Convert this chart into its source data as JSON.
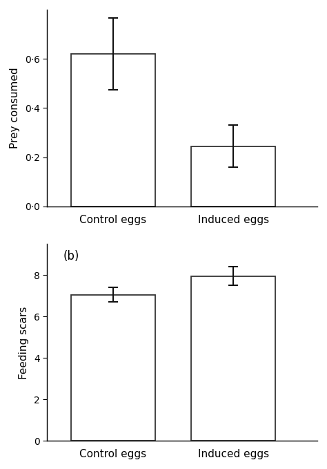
{
  "top": {
    "categories": [
      "Control eggs",
      "Induced eggs"
    ],
    "values": [
      0.62,
      0.245
    ],
    "errors_upper": [
      0.145,
      0.085
    ],
    "errors_lower": [
      0.145,
      0.085
    ],
    "ylabel": "Prey consumed",
    "ylim": [
      0,
      0.8
    ],
    "yticks": [
      0.0,
      0.2,
      0.4,
      0.6
    ],
    "ytick_labels": [
      "0·0",
      "0·2",
      "0·4",
      "0·6"
    ]
  },
  "bottom": {
    "categories": [
      "Control eggs",
      "Induced eggs"
    ],
    "values": [
      7.05,
      7.95
    ],
    "errors_upper": [
      0.35,
      0.45
    ],
    "errors_lower": [
      0.35,
      0.45
    ],
    "ylabel": "Feeding scars",
    "panel_label": "(b)",
    "ylim": [
      0,
      9.5
    ],
    "yticks": [
      0,
      2,
      4,
      6,
      8
    ],
    "ytick_labels": [
      "0",
      "2",
      "4",
      "6",
      "8"
    ]
  },
  "bar_color": "white",
  "bar_edgecolor": "#333333",
  "bar_linewidth": 1.3,
  "errorbar_color": "#111111",
  "errorbar_linewidth": 1.5,
  "errorbar_capsize": 5,
  "xlabel_fontsize": 11,
  "ylabel_fontsize": 11,
  "tick_fontsize": 10,
  "panel_label_fontsize": 12,
  "bar_width": 0.7,
  "x_positions": [
    1,
    2
  ],
  "xlim": [
    0.45,
    2.7
  ],
  "background_color": "#ffffff",
  "font_family": "DejaVu Sans"
}
